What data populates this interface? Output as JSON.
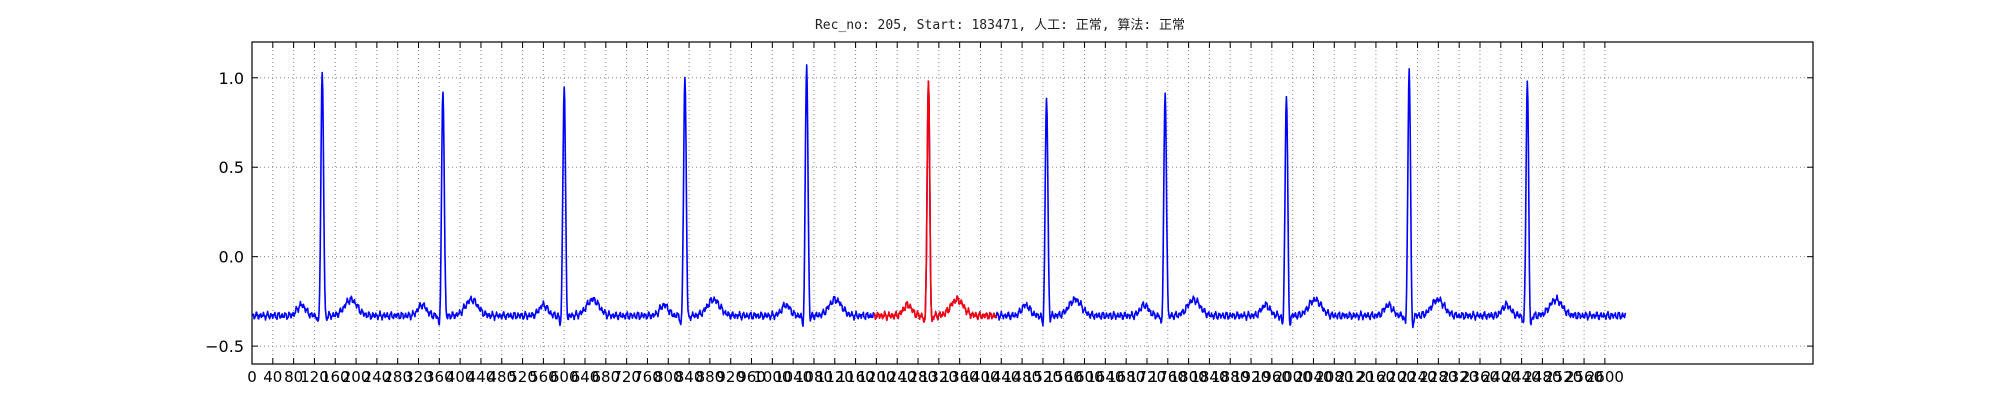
{
  "chart_data": {
    "type": "line",
    "title": "Rec_no: 205, Start: 183471, 人工: 正常, 算法: 正常",
    "xlabel": "",
    "ylabel": "",
    "xlim": [
      0,
      3000
    ],
    "ylim": [
      -0.6,
      1.2
    ],
    "grid": true,
    "yticks": [
      -0.5,
      0.0,
      0.5,
      1.0
    ],
    "ytick_labels": [
      "−0.5",
      "0.0",
      "0.5",
      "1.0"
    ],
    "xticks": [
      0,
      40,
      80,
      120,
      160,
      200,
      240,
      280,
      320,
      360,
      400,
      440,
      480,
      520,
      560,
      600,
      640,
      680,
      720,
      760,
      800,
      840,
      880,
      920,
      960,
      1000,
      1040,
      1080,
      1120,
      1160,
      1200,
      1240,
      1280,
      1320,
      1360,
      1400,
      1440,
      1480,
      1520,
      1560,
      1600,
      1640,
      1680,
      1720,
      1760,
      1800,
      1840,
      1880,
      1920,
      1960,
      2000,
      2040,
      2080,
      2120,
      2160,
      2200,
      2240,
      2280,
      2320,
      2360,
      2400,
      2440,
      2480,
      2520,
      2560,
      2600
    ],
    "xtick_labels": [
      "0",
      "40",
      "80",
      "120",
      "160",
      "200",
      "240",
      "280",
      "320",
      "360",
      "400",
      "440",
      "480",
      "520",
      "560",
      "600",
      "640",
      "680",
      "720",
      "760",
      "800",
      "840",
      "880",
      "920",
      "960",
      "1000",
      "1040",
      "1080",
      "1120",
      "1160",
      "1200",
      "1240",
      "1280",
      "1320",
      "1360",
      "1400",
      "1440",
      "1480",
      "1520",
      "1560",
      "1600",
      "1640",
      "1680",
      "1720",
      "1760",
      "1800",
      "1840",
      "1880",
      "1920",
      "1960",
      "2000",
      "2040",
      "2080",
      "2120",
      "2160",
      "2200",
      "2240",
      "2280",
      "2320",
      "2360",
      "2400",
      "2440",
      "2480",
      "2520",
      "2560",
      "2600"
    ],
    "series": [
      {
        "color": "#0000ff",
        "x_end": 2640,
        "baseline": -0.33,
        "beats": [
          {
            "x": 135,
            "r": 0.98,
            "s": -0.45
          },
          {
            "x": 367,
            "r": 0.88,
            "s": -0.44
          },
          {
            "x": 600,
            "r": 0.91,
            "s": -0.46
          },
          {
            "x": 832,
            "r": 0.96,
            "s": -0.46
          },
          {
            "x": 1066,
            "r": 1.03,
            "s": -0.47
          },
          {
            "x": 1300,
            "r": 0.92,
            "s": -0.49
          },
          {
            "x": 1527,
            "r": 0.84,
            "s": -0.45
          },
          {
            "x": 1755,
            "r": 0.86,
            "s": -0.44
          },
          {
            "x": 1988,
            "r": 0.87,
            "s": -0.5
          },
          {
            "x": 2224,
            "r": 1.01,
            "s": -0.53
          },
          {
            "x": 2451,
            "r": 0.93,
            "s": -0.52
          }
        ]
      },
      {
        "color": "#ff0000",
        "x_start": 1195,
        "x_end": 1430
      }
    ]
  }
}
